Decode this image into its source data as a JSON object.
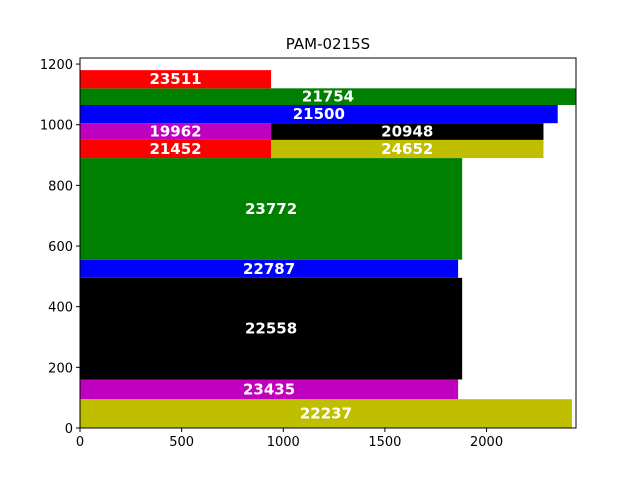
{
  "chart_data": {
    "type": "bar",
    "title": "PAM-0215S",
    "xlabel": "",
    "ylabel": "",
    "xlim": [
      0,
      2440
    ],
    "ylim": [
      0,
      1220
    ],
    "xticks": [
      0,
      500,
      1000,
      1500,
      2000
    ],
    "yticks": [
      0,
      200,
      400,
      600,
      800,
      1000,
      1200
    ],
    "grid": false,
    "colors": {
      "red": "#ff0000",
      "green": "#008000",
      "blue": "#0000ff",
      "magenta": "#bf00bf",
      "black": "#000000",
      "olive": "#bfbf00"
    },
    "rectangles": [
      {
        "label": "22237",
        "x0": 0,
        "x1": 2420,
        "y0": 0,
        "y1": 95,
        "color": "olive"
      },
      {
        "label": "23435",
        "x0": 0,
        "x1": 1860,
        "y0": 95,
        "y1": 160,
        "color": "magenta"
      },
      {
        "label": "22558",
        "x0": 0,
        "x1": 1880,
        "y0": 160,
        "y1": 495,
        "color": "black"
      },
      {
        "label": "22787",
        "x0": 0,
        "x1": 1860,
        "y0": 495,
        "y1": 555,
        "color": "blue"
      },
      {
        "label": "23772",
        "x0": 0,
        "x1": 1880,
        "y0": 555,
        "y1": 890,
        "color": "green"
      },
      {
        "label": "21452",
        "x0": 0,
        "x1": 940,
        "y0": 890,
        "y1": 950,
        "color": "red"
      },
      {
        "label": "24652",
        "x0": 940,
        "x1": 2280,
        "y0": 890,
        "y1": 950,
        "color": "olive"
      },
      {
        "label": "19962",
        "x0": 0,
        "x1": 940,
        "y0": 950,
        "y1": 1005,
        "color": "magenta"
      },
      {
        "label": "20948",
        "x0": 940,
        "x1": 2280,
        "y0": 950,
        "y1": 1005,
        "color": "black"
      },
      {
        "label": "21500",
        "x0": 0,
        "x1": 2350,
        "y0": 1005,
        "y1": 1065,
        "color": "blue"
      },
      {
        "label": "21754",
        "x0": 0,
        "x1": 2440,
        "y0": 1065,
        "y1": 1120,
        "color": "green"
      },
      {
        "label": "23511",
        "x0": 0,
        "x1": 940,
        "y0": 1120,
        "y1": 1180,
        "color": "red"
      }
    ]
  }
}
